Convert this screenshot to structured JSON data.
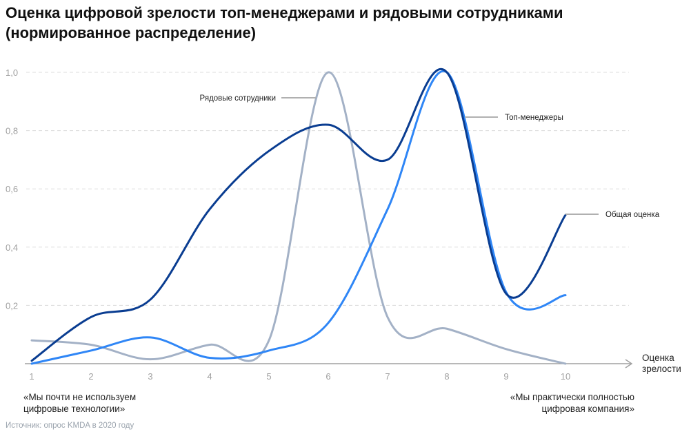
{
  "chart_data": {
    "type": "line",
    "title": "Оценка цифровой зрелости топ-менеджерами и рядовыми сотрудниками",
    "subtitle": "(нормированное распределение)",
    "xlabel": "Оценка зрелости",
    "ylabel": "",
    "x": [
      1,
      2,
      3,
      4,
      5,
      6,
      7,
      8,
      9,
      10
    ],
    "xlim": [
      1,
      10
    ],
    "ylim": [
      0,
      1.0
    ],
    "y_ticks": [
      "0,2",
      "0,4",
      "0,6",
      "0,8",
      "1,0"
    ],
    "x_ticks": [
      "1",
      "2",
      "3",
      "4",
      "5",
      "6",
      "7",
      "8",
      "9",
      "10"
    ],
    "grid": "horizontal dashed",
    "series": [
      {
        "name": "Общая оценка",
        "color": "#0a3d91",
        "values": [
          0.01,
          0.16,
          0.22,
          0.53,
          0.73,
          0.82,
          0.7,
          1.0,
          0.24,
          0.51
        ]
      },
      {
        "name": "Топ-менеджеры",
        "color": "#2f86f6",
        "values": [
          0.0,
          0.045,
          0.09,
          0.02,
          0.045,
          0.14,
          0.53,
          1.0,
          0.245,
          0.235
        ]
      },
      {
        "name": "Рядовые сотрудники",
        "color": "#a3b1c6",
        "values": [
          0.08,
          0.065,
          0.015,
          0.065,
          0.08,
          1.0,
          0.16,
          0.12,
          0.05,
          0.0
        ]
      }
    ],
    "left_note": "«Мы почти не используем цифровые технологии»",
    "right_note": "«Мы практически полностью цифровая компания»",
    "source": "Источник: опрос KMDA в 2020 году"
  }
}
